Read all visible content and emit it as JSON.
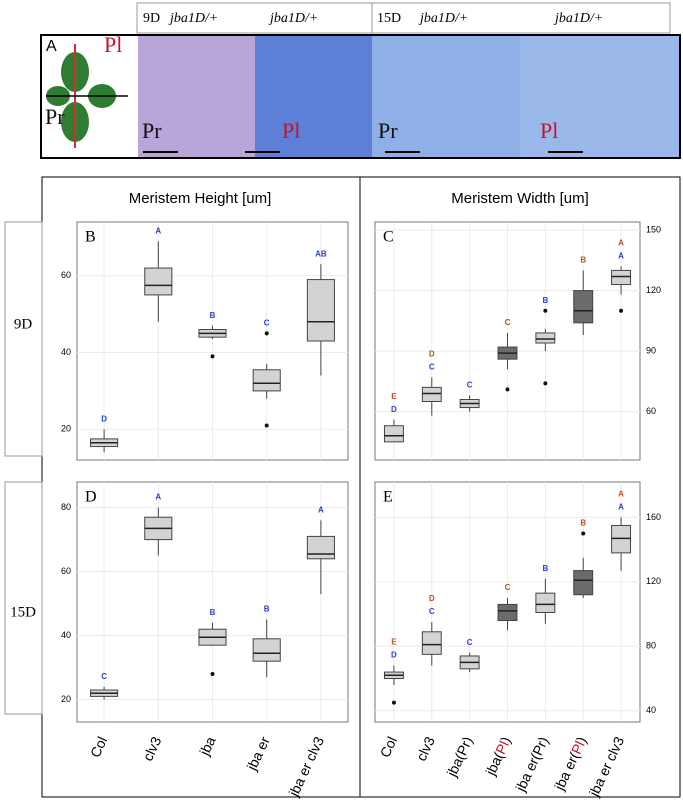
{
  "figure": {
    "header": [
      {
        "day": "9D",
        "labels": [
          "jba1D/+",
          "jba1D/+"
        ]
      },
      {
        "day": "15D",
        "labels": [
          "jba1D/+",
          "jba1D/+"
        ]
      }
    ],
    "leaf": {
      "panel": "A",
      "labels": [
        "Pl",
        "Pr"
      ]
    },
    "images": [
      "Pr",
      "Pl",
      "Pr",
      "Pl"
    ],
    "columns": [
      "Meristem Height [um]",
      "Meristem Width [um]"
    ],
    "rows": [
      "9D",
      "15D"
    ]
  },
  "chart_data": [
    {
      "type": "box",
      "panel": "B",
      "yaxis_side": "left",
      "grid": true,
      "ylim": [
        12,
        74
      ],
      "yticks": [
        20,
        40,
        60
      ],
      "min": [
        14,
        48,
        43.5,
        28,
        34
      ],
      "q1": [
        15.5,
        55,
        44,
        30,
        43
      ],
      "median": [
        16.5,
        57.5,
        45,
        32,
        48
      ],
      "q3": [
        17.5,
        62,
        46,
        35.5,
        59
      ],
      "max": [
        20,
        69,
        47,
        37,
        63
      ],
      "outliers": [
        [],
        [],
        [
          39
        ],
        [
          45,
          21
        ],
        []
      ],
      "colors": [
        "#d3d3d3",
        "#d3d3d3",
        "#d3d3d3",
        "#d3d3d3",
        "#d3d3d3"
      ],
      "letters": [
        [
          {
            "text": "D",
            "color": "#2b3fd6"
          }
        ],
        [
          {
            "text": "A",
            "color": "#2b3fd6"
          }
        ],
        [
          {
            "text": "B",
            "color": "#2b3fd6"
          }
        ],
        [
          {
            "text": "C",
            "color": "#2b3fd6"
          }
        ],
        [
          {
            "text": "AB",
            "color": "#2b3fd6"
          }
        ]
      ]
    },
    {
      "type": "box",
      "panel": "C",
      "yaxis_side": "right",
      "grid": true,
      "ylim": [
        36,
        154
      ],
      "yticks": [
        60,
        90,
        120,
        150
      ],
      "min": [
        45,
        58,
        60,
        81,
        90,
        98,
        118
      ],
      "q1": [
        45,
        65,
        62,
        86,
        94,
        104,
        123
      ],
      "median": [
        48,
        69,
        64,
        89,
        96,
        110,
        127
      ],
      "q3": [
        53,
        72,
        66,
        92,
        99,
        120,
        130
      ],
      "max": [
        56,
        77,
        68,
        99,
        101,
        130,
        132
      ],
      "outliers": [
        [],
        [],
        [],
        [
          71
        ],
        [
          110,
          74
        ],
        [],
        [
          110
        ]
      ],
      "colors": [
        "#d3d3d3",
        "#d3d3d3",
        "#d3d3d3",
        "#6b6b6b",
        "#d3d3d3",
        "#6b6b6b",
        "#d3d3d3"
      ],
      "letters": [
        [
          {
            "text": "E",
            "color": "#c0502a"
          },
          {
            "text": "D",
            "color": "#2b3fd6"
          }
        ],
        [
          {
            "text": "D",
            "color": "#c0502a"
          },
          {
            "text": "C",
            "color": "#2b3fd6"
          }
        ],
        [
          {
            "text": "C",
            "color": "#2b3fd6"
          }
        ],
        [
          {
            "text": "C",
            "color": "#c0502a"
          }
        ],
        [
          {
            "text": "B",
            "color": "#2b3fd6"
          }
        ],
        [
          {
            "text": "B",
            "color": "#c0502a"
          }
        ],
        [
          {
            "text": "A",
            "color": "#c0502a"
          },
          {
            "text": "A",
            "color": "#2b3fd6"
          }
        ]
      ]
    },
    {
      "type": "box",
      "panel": "D",
      "yaxis_side": "left",
      "grid": true,
      "ylim": [
        13,
        88
      ],
      "yticks": [
        20,
        40,
        60,
        80
      ],
      "categories": [
        "Col",
        "clv3",
        "jba",
        "jba er",
        "jba er clv3"
      ],
      "min": [
        20,
        65,
        37,
        27,
        53
      ],
      "q1": [
        21,
        70,
        37,
        32,
        64
      ],
      "median": [
        22,
        73.5,
        39.5,
        34.5,
        65.5
      ],
      "q3": [
        23,
        77,
        42,
        39,
        71
      ],
      "max": [
        24,
        80,
        44,
        45,
        76
      ],
      "outliers": [
        [],
        [],
        [
          28
        ],
        [],
        []
      ],
      "colors": [
        "#d3d3d3",
        "#d3d3d3",
        "#d3d3d3",
        "#d3d3d3",
        "#d3d3d3"
      ],
      "letters": [
        [
          {
            "text": "C",
            "color": "#2b3fd6"
          }
        ],
        [
          {
            "text": "A",
            "color": "#2b3fd6"
          }
        ],
        [
          {
            "text": "B",
            "color": "#2b3fd6"
          }
        ],
        [
          {
            "text": "B",
            "color": "#2b3fd6"
          }
        ],
        [
          {
            "text": "A",
            "color": "#2b3fd6"
          }
        ]
      ]
    },
    {
      "type": "box",
      "panel": "E",
      "yaxis_side": "right",
      "grid": true,
      "ylim": [
        33,
        182
      ],
      "yticks": [
        40,
        80,
        120,
        160
      ],
      "categories": [
        "Col",
        "clv3",
        "jba(Pr)",
        "jba(Pl)",
        "jba er(Pr)",
        "jba er(Pl)",
        "jba er clv3"
      ],
      "category_highlight": [
        null,
        null,
        null,
        "Pl",
        null,
        "Pl",
        null
      ],
      "highlight_color": "#c8102e",
      "min": [
        56,
        68,
        64,
        90,
        94,
        110,
        127
      ],
      "q1": [
        60,
        75,
        66,
        96,
        101,
        112,
        138
      ],
      "median": [
        62,
        81,
        70,
        102,
        106,
        121,
        147
      ],
      "q3": [
        64,
        89,
        74,
        106,
        113,
        127,
        155
      ],
      "max": [
        68,
        95,
        76,
        110,
        122,
        135,
        160
      ],
      "outliers": [
        [
          45
        ],
        [],
        [],
        [],
        [],
        [
          150
        ],
        []
      ],
      "colors": [
        "#d3d3d3",
        "#d3d3d3",
        "#d3d3d3",
        "#6b6b6b",
        "#d3d3d3",
        "#6b6b6b",
        "#d3d3d3"
      ],
      "letters": [
        [
          {
            "text": "E",
            "color": "#c0502a"
          },
          {
            "text": "D",
            "color": "#2b3fd6"
          }
        ],
        [
          {
            "text": "D",
            "color": "#c0502a"
          },
          {
            "text": "C",
            "color": "#2b3fd6"
          }
        ],
        [
          {
            "text": "C",
            "color": "#2b3fd6"
          }
        ],
        [
          {
            "text": "C",
            "color": "#c0502a"
          }
        ],
        [
          {
            "text": "B",
            "color": "#2b3fd6"
          }
        ],
        [
          {
            "text": "B",
            "color": "#c0502a"
          }
        ],
        [
          {
            "text": "A",
            "color": "#c0502a"
          },
          {
            "text": "A",
            "color": "#2b3fd6"
          }
        ]
      ]
    }
  ]
}
